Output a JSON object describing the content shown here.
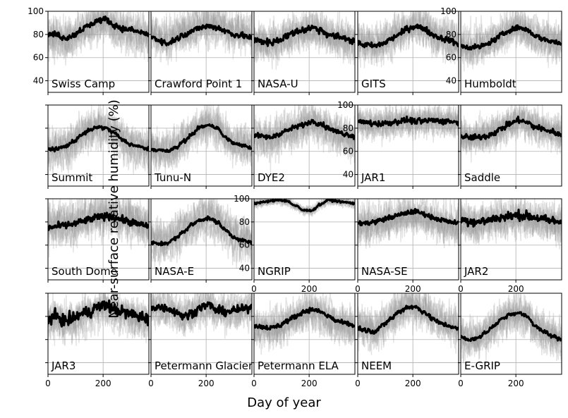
{
  "figure": {
    "ylabel": "Near-surface relative humidity (%)",
    "xlabel": "Day of year"
  },
  "chart_data": {
    "type": "line",
    "layout": "4 rows x 5 columns of small-multiple panels",
    "xlim": [
      0,
      366
    ],
    "ylim": [
      30,
      100
    ],
    "xticks": [
      0,
      200
    ],
    "yticks": [
      40,
      60,
      80,
      100
    ],
    "grid": true,
    "background_series_color": "#9a9a9a",
    "mean_series_color": "#000000",
    "panels": [
      {
        "station": "Swiss Camp",
        "x": [
          0,
          30,
          60,
          90,
          120,
          150,
          180,
          210,
          240,
          270,
          300,
          330,
          366
        ],
        "y": [
          80,
          80,
          77,
          79,
          84,
          88,
          92,
          93,
          88,
          85,
          84,
          82,
          80
        ],
        "noise": 2.5,
        "spread": 12
      },
      {
        "station": "Crawford Point 1",
        "x": [
          0,
          30,
          60,
          90,
          120,
          150,
          180,
          210,
          240,
          270,
          300,
          330,
          366
        ],
        "y": [
          78,
          75,
          72,
          76,
          80,
          83,
          86,
          87,
          86,
          83,
          80,
          79,
          77
        ],
        "noise": 2.5,
        "spread": 12
      },
      {
        "station": "NASA-U",
        "x": [
          0,
          30,
          60,
          90,
          120,
          150,
          180,
          210,
          240,
          270,
          300,
          330,
          366
        ],
        "y": [
          75,
          74,
          73,
          75,
          79,
          82,
          84,
          86,
          84,
          80,
          78,
          77,
          74
        ],
        "noise": 3,
        "spread": 12
      },
      {
        "station": "GITS",
        "x": [
          0,
          30,
          60,
          90,
          120,
          150,
          180,
          210,
          240,
          270,
          300,
          330,
          366
        ],
        "y": [
          72,
          71,
          70,
          72,
          76,
          80,
          85,
          87,
          85,
          80,
          77,
          75,
          72
        ],
        "noise": 2.5,
        "spread": 12
      },
      {
        "station": "Humboldt",
        "x": [
          0,
          30,
          60,
          90,
          120,
          150,
          180,
          210,
          240,
          270,
          300,
          330,
          366
        ],
        "y": [
          70,
          69,
          69,
          71,
          75,
          80,
          84,
          86,
          84,
          79,
          76,
          74,
          72
        ],
        "noise": 2,
        "spread": 12
      },
      {
        "station": "Summit",
        "x": [
          0,
          30,
          60,
          90,
          120,
          150,
          180,
          210,
          240,
          270,
          300,
          330,
          366
        ],
        "y": [
          62,
          62,
          64,
          68,
          74,
          78,
          81,
          80,
          76,
          70,
          66,
          64,
          62
        ],
        "noise": 1.5,
        "spread": 12
      },
      {
        "station": "Tunu-N",
        "x": [
          0,
          30,
          60,
          90,
          120,
          150,
          180,
          210,
          240,
          270,
          300,
          330,
          366
        ],
        "y": [
          62,
          61,
          60,
          63,
          69,
          75,
          81,
          83,
          80,
          72,
          67,
          65,
          63
        ],
        "noise": 1.5,
        "spread": 12
      },
      {
        "station": "DYE2",
        "x": [
          0,
          30,
          60,
          90,
          120,
          150,
          180,
          210,
          240,
          270,
          300,
          330,
          366
        ],
        "y": [
          74,
          73,
          72,
          75,
          78,
          81,
          83,
          86,
          84,
          80,
          77,
          75,
          73
        ],
        "noise": 2,
        "spread": 12
      },
      {
        "station": "JAR1",
        "x": [
          0,
          30,
          60,
          90,
          120,
          150,
          180,
          210,
          240,
          270,
          300,
          330,
          366
        ],
        "y": [
          86,
          85,
          84,
          84,
          85,
          86,
          87,
          86,
          86,
          87,
          86,
          86,
          85
        ],
        "noise": 2.5,
        "spread": 10
      },
      {
        "station": "Saddle",
        "x": [
          0,
          30,
          60,
          90,
          120,
          150,
          180,
          210,
          240,
          270,
          300,
          330,
          366
        ],
        "y": [
          73,
          72,
          72,
          73,
          76,
          80,
          84,
          87,
          85,
          81,
          79,
          77,
          74
        ],
        "noise": 2.5,
        "spread": 12
      },
      {
        "station": "South Dome",
        "x": [
          0,
          30,
          60,
          90,
          120,
          150,
          180,
          210,
          240,
          270,
          300,
          330,
          366
        ],
        "y": [
          75,
          76,
          77,
          78,
          80,
          82,
          84,
          85,
          84,
          82,
          80,
          78,
          76
        ],
        "noise": 3,
        "spread": 14
      },
      {
        "station": "NASA-E",
        "x": [
          0,
          30,
          60,
          90,
          120,
          150,
          180,
          210,
          240,
          270,
          300,
          330,
          366
        ],
        "y": [
          62,
          61,
          62,
          66,
          72,
          78,
          82,
          83,
          80,
          73,
          67,
          64,
          62
        ],
        "noise": 1.5,
        "spread": 12
      },
      {
        "station": "NGRIP",
        "x": [
          0,
          30,
          60,
          90,
          120,
          150,
          180,
          210,
          240,
          270,
          300,
          330,
          366
        ],
        "y": [
          96,
          97,
          98,
          99,
          98,
          94,
          90,
          90,
          95,
          99,
          98,
          97,
          96
        ],
        "noise": 0.8,
        "spread": 3
      },
      {
        "station": "NASA-SE",
        "x": [
          0,
          30,
          60,
          90,
          120,
          150,
          180,
          210,
          240,
          270,
          300,
          330,
          366
        ],
        "y": [
          79,
          79,
          80,
          82,
          84,
          86,
          88,
          89,
          87,
          84,
          82,
          80,
          79
        ],
        "noise": 2,
        "spread": 12
      },
      {
        "station": "JAR2",
        "x": [
          0,
          30,
          60,
          90,
          120,
          150,
          180,
          210,
          240,
          270,
          300,
          330,
          366
        ],
        "y": [
          82,
          81,
          80,
          81,
          83,
          84,
          85,
          86,
          85,
          84,
          82,
          81,
          80
        ],
        "noise": 4,
        "spread": 12
      },
      {
        "station": "JAR3",
        "x": [
          0,
          30,
          60,
          90,
          120,
          150,
          180,
          210,
          240,
          270,
          300,
          330,
          366
        ],
        "y": [
          78,
          80,
          76,
          78,
          82,
          84,
          88,
          90,
          86,
          84,
          82,
          80,
          78
        ],
        "noise": 5,
        "spread": 12
      },
      {
        "station": "Petermann Glacier",
        "x": [
          0,
          30,
          60,
          90,
          120,
          150,
          180,
          210,
          240,
          270,
          300,
          330,
          366
        ],
        "y": [
          88,
          88,
          87,
          84,
          80,
          83,
          88,
          90,
          85,
          84,
          85,
          86,
          88
        ],
        "noise": 3.5,
        "spread": 10
      },
      {
        "station": "Petermann ELA",
        "x": [
          0,
          30,
          60,
          90,
          120,
          150,
          180,
          210,
          240,
          270,
          300,
          330,
          366
        ],
        "y": [
          72,
          71,
          70,
          72,
          76,
          80,
          84,
          86,
          84,
          80,
          76,
          74,
          72
        ],
        "noise": 2,
        "spread": 12
      },
      {
        "station": "NEEM",
        "x": [
          0,
          30,
          60,
          90,
          120,
          150,
          180,
          210,
          240,
          270,
          300,
          330,
          366
        ],
        "y": [
          70,
          68,
          67,
          72,
          78,
          84,
          88,
          88,
          84,
          78,
          74,
          72,
          69
        ],
        "noise": 2,
        "spread": 12
      },
      {
        "station": "E-GRIP",
        "x": [
          0,
          30,
          60,
          90,
          120,
          150,
          180,
          210,
          240,
          270,
          300,
          330,
          366
        ],
        "y": [
          62,
          60,
          61,
          66,
          72,
          78,
          82,
          83,
          80,
          72,
          67,
          63,
          60
        ],
        "noise": 1.5,
        "spread": 12
      }
    ]
  }
}
